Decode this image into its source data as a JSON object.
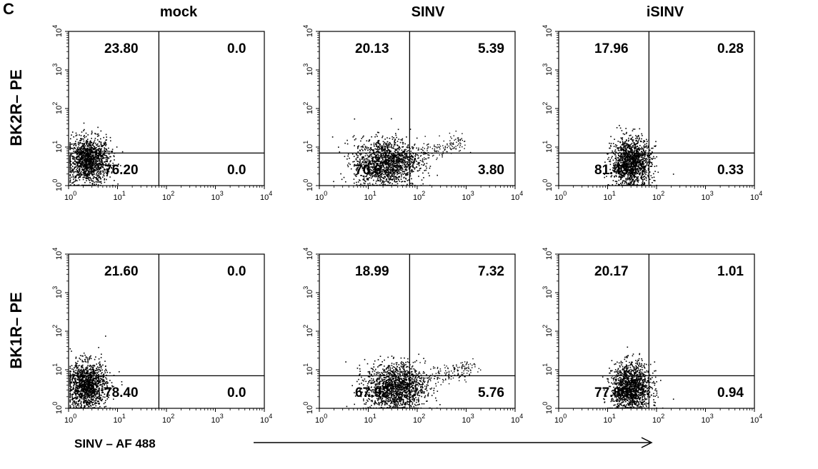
{
  "panel_letter": "C",
  "x_axis_label": "SINV – AF 488",
  "column_titles": [
    "mock",
    "SINV",
    "iSINV"
  ],
  "row_labels": [
    "BK2R– PE",
    "BK1R– PE"
  ],
  "colors": {
    "dots": "#000000",
    "axes": "#000000",
    "background": "#ffffff"
  },
  "chart_data": [
    {
      "type": "scatter",
      "row": "BK2R– PE",
      "column": "mock",
      "xscale": "log",
      "yscale": "log",
      "xlim": [
        1,
        10000
      ],
      "ylim": [
        1,
        10000
      ],
      "quadrants": {
        "upper_left": "23.80",
        "upper_right": "0.0",
        "lower_left": "76.20",
        "lower_right": "0.0"
      },
      "population": {
        "center_x": 2.5,
        "center_y": 4.5,
        "spread_x": 0.22,
        "spread_y": 0.3
      }
    },
    {
      "type": "scatter",
      "row": "BK2R– PE",
      "column": "SINV",
      "xscale": "log",
      "yscale": "log",
      "xlim": [
        1,
        10000
      ],
      "ylim": [
        1,
        10000
      ],
      "quadrants": {
        "upper_left": "20.13",
        "upper_right": "5.39",
        "lower_left": "70.6",
        "lower_right": "3.80"
      },
      "population": {
        "center_x": 22,
        "center_y": 4.0,
        "spread_x": 0.32,
        "spread_y": 0.32
      }
    },
    {
      "type": "scatter",
      "row": "BK2R– PE",
      "column": "iSINV",
      "xscale": "log",
      "yscale": "log",
      "xlim": [
        1,
        10000
      ],
      "ylim": [
        1,
        10000
      ],
      "quadrants": {
        "upper_left": "17.96",
        "upper_right": "0.28",
        "lower_left": "81.43",
        "lower_right": "0.33"
      },
      "population": {
        "center_x": 30,
        "center_y": 4.0,
        "spread_x": 0.2,
        "spread_y": 0.32
      }
    },
    {
      "type": "scatter",
      "row": "BK1R– PE",
      "column": "mock",
      "xscale": "log",
      "yscale": "log",
      "xlim": [
        1,
        10000
      ],
      "ylim": [
        1,
        10000
      ],
      "quadrants": {
        "upper_left": "21.60",
        "upper_right": "0.0",
        "lower_left": "78.40",
        "lower_right": "0.0"
      },
      "population": {
        "center_x": 2.3,
        "center_y": 4.0,
        "spread_x": 0.2,
        "spread_y": 0.3
      }
    },
    {
      "type": "scatter",
      "row": "BK1R– PE",
      "column": "SINV",
      "xscale": "log",
      "yscale": "log",
      "xlim": [
        1,
        10000
      ],
      "ylim": [
        1,
        10000
      ],
      "quadrants": {
        "upper_left": "18.99",
        "upper_right": "7.32",
        "lower_left": "67.92",
        "lower_right": "5.76"
      },
      "population": {
        "center_x": 35,
        "center_y": 3.5,
        "spread_x": 0.3,
        "spread_y": 0.32
      }
    },
    {
      "type": "scatter",
      "row": "BK1R– PE",
      "column": "iSINV",
      "xscale": "log",
      "yscale": "log",
      "xlim": [
        1,
        10000
      ],
      "ylim": [
        1,
        10000
      ],
      "quadrants": {
        "upper_left": "20.17",
        "upper_right": "1.01",
        "lower_left": "77.88",
        "lower_right": "0.94"
      },
      "population": {
        "center_x": 30,
        "center_y": 3.5,
        "spread_x": 0.2,
        "spread_y": 0.32
      }
    }
  ]
}
